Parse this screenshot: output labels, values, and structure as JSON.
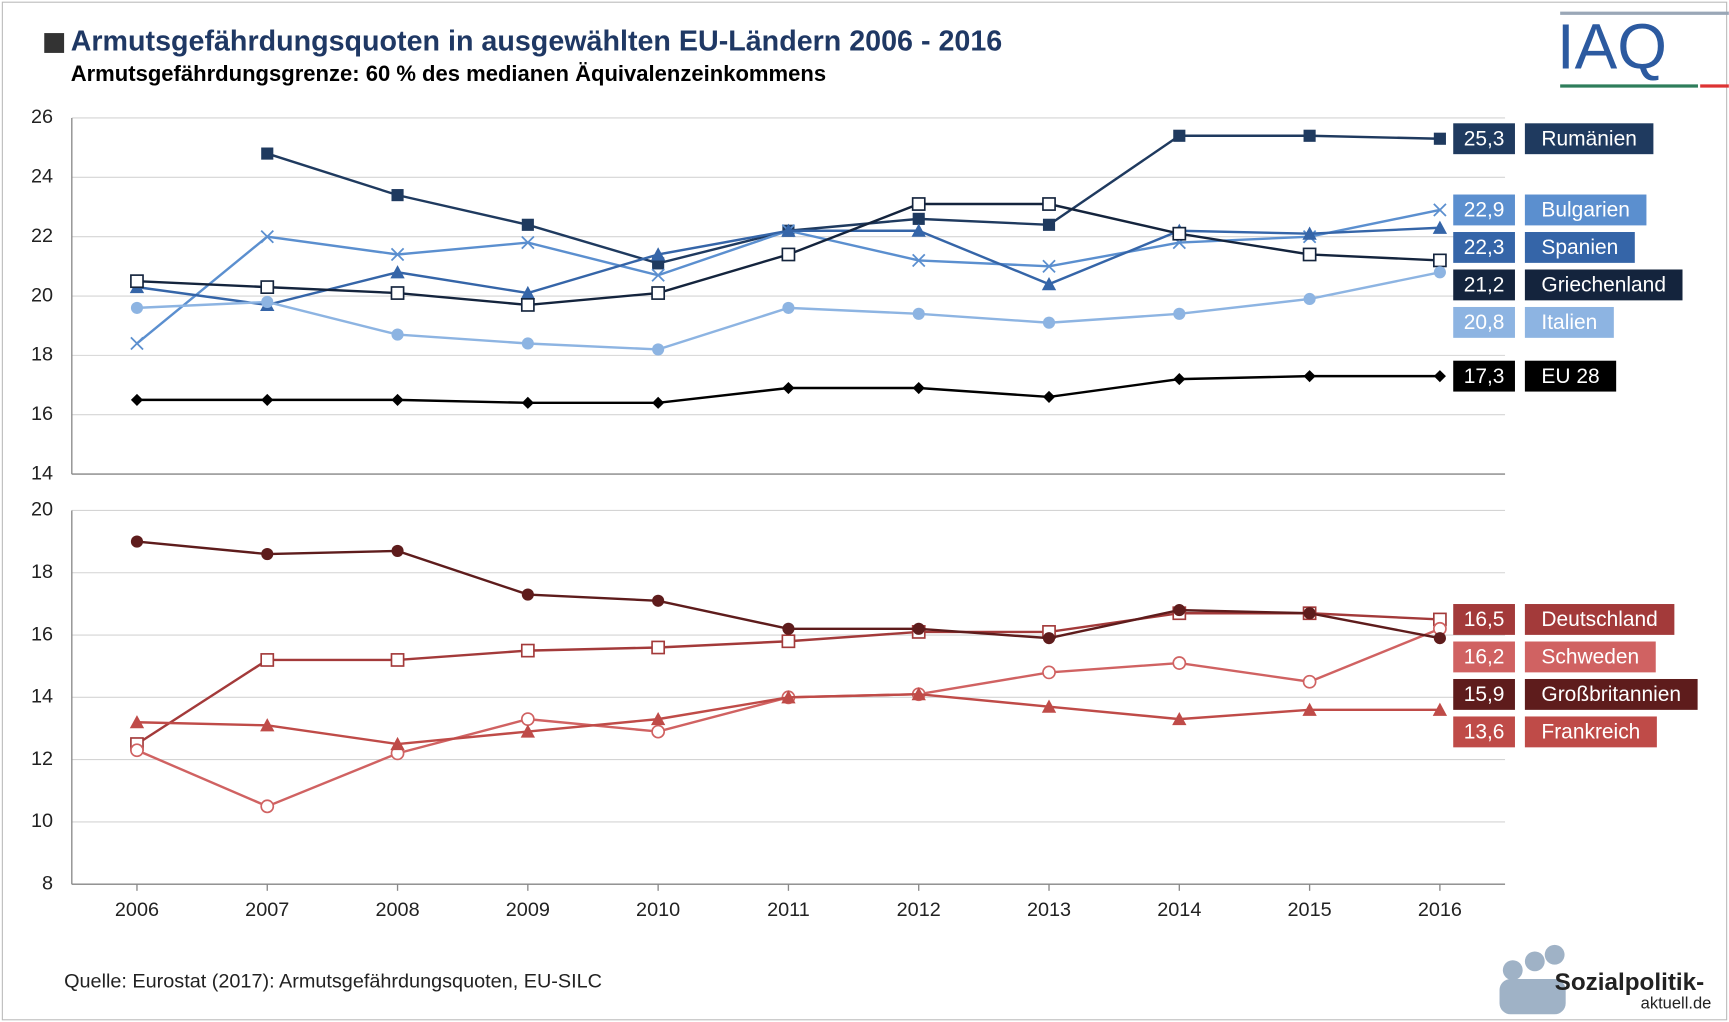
{
  "title": "Armutsgefährdungsquoten in ausgewählten EU-Ländern 2006 - 2016",
  "subtitle": "Armutsgefährdungsgrenze: 60 % des medianen Äquivalenzeinkommens",
  "source": "Quelle: Eurostat (2017): Armutsgefährdungsquoten, EU-SILC",
  "logo": "IAQ",
  "logo2": [
    "Sozialpolitik-",
    "aktuell.de"
  ],
  "chart_data": [
    {
      "type": "line",
      "ylim": [
        14,
        26
      ],
      "yticks": [
        14,
        16,
        18,
        20,
        22,
        24,
        26
      ],
      "grid": true,
      "series": [
        {
          "name": "Rumänien",
          "color": "#1f3a5f",
          "marker": "square",
          "values": [
            null,
            24.8,
            23.4,
            22.4,
            21.1,
            22.2,
            22.6,
            22.4,
            25.4,
            25.4,
            25.3
          ],
          "value_labels": [
            null,
            null,
            null,
            null,
            null,
            null,
            null,
            null,
            null,
            null,
            "25,3"
          ]
        },
        {
          "name": "Bulgarien",
          "color": "#5b8fcf",
          "marker": "x",
          "values": [
            18.4,
            22.0,
            21.4,
            21.8,
            20.7,
            22.2,
            21.2,
            21.0,
            21.8,
            22.0,
            22.9
          ],
          "value_labels": [
            null,
            null,
            null,
            null,
            null,
            null,
            null,
            null,
            null,
            null,
            "22,9"
          ]
        },
        {
          "name": "Spanien",
          "color": "#3565a8",
          "marker": "triangle",
          "values": [
            20.3,
            19.7,
            20.8,
            20.1,
            21.4,
            22.2,
            22.2,
            20.4,
            22.2,
            22.1,
            22.3
          ],
          "value_labels": [
            null,
            null,
            null,
            null,
            null,
            null,
            null,
            null,
            null,
            null,
            "22,3"
          ]
        },
        {
          "name": "Griechenland",
          "color": "#14243d",
          "marker": "square-open",
          "values": [
            20.5,
            20.3,
            20.1,
            19.7,
            20.1,
            21.4,
            23.1,
            23.1,
            22.1,
            21.4,
            21.2
          ],
          "value_labels": [
            null,
            null,
            null,
            null,
            null,
            null,
            null,
            null,
            null,
            null,
            "21,2"
          ]
        },
        {
          "name": "Italien",
          "color": "#8db4e2",
          "marker": "circle",
          "values": [
            19.6,
            19.8,
            18.7,
            18.4,
            18.2,
            19.6,
            19.4,
            19.1,
            19.4,
            19.9,
            20.8
          ],
          "value_labels": [
            null,
            null,
            null,
            null,
            null,
            null,
            null,
            null,
            null,
            null,
            "20,8"
          ]
        },
        {
          "name": "EU 28",
          "color": "#000000",
          "marker": "diamond",
          "values": [
            16.5,
            16.5,
            16.5,
            16.4,
            16.4,
            16.9,
            16.9,
            16.6,
            17.2,
            17.3,
            17.3
          ],
          "value_labels": [
            null,
            null,
            null,
            null,
            null,
            null,
            null,
            null,
            null,
            null,
            "17,3"
          ]
        }
      ]
    },
    {
      "type": "line",
      "categories": [
        "2006",
        "2007",
        "2008",
        "2009",
        "2010",
        "2011",
        "2012",
        "2013",
        "2014",
        "2015",
        "2016"
      ],
      "ylim": [
        8,
        20
      ],
      "yticks": [
        8,
        10,
        12,
        14,
        16,
        18,
        20
      ],
      "grid": true,
      "series": [
        {
          "name": "Deutschland",
          "color": "#a33a3a",
          "marker": "square-open",
          "values": [
            12.5,
            15.2,
            15.2,
            15.5,
            15.6,
            15.8,
            16.1,
            16.1,
            16.7,
            16.7,
            16.5
          ],
          "value_labels": [
            null,
            null,
            null,
            null,
            null,
            null,
            null,
            null,
            null,
            null,
            "16,5"
          ]
        },
        {
          "name": "Schweden",
          "color": "#d06262",
          "marker": "circle-open",
          "values": [
            12.3,
            10.5,
            12.2,
            13.3,
            12.9,
            14.0,
            14.1,
            14.8,
            15.1,
            14.5,
            16.2
          ],
          "value_labels": [
            null,
            null,
            null,
            null,
            null,
            null,
            null,
            null,
            null,
            null,
            "16,2"
          ]
        },
        {
          "name": "Großbritannien",
          "color": "#5e1c1c",
          "marker": "circle",
          "values": [
            19.0,
            18.6,
            18.7,
            17.3,
            17.1,
            16.2,
            16.2,
            15.9,
            16.8,
            16.7,
            15.9
          ],
          "value_labels": [
            null,
            null,
            null,
            null,
            null,
            null,
            null,
            null,
            null,
            null,
            "15,9"
          ]
        },
        {
          "name": "Frankreich",
          "color": "#bf4b48",
          "marker": "triangle",
          "values": [
            13.2,
            13.1,
            12.5,
            12.9,
            13.3,
            14.0,
            14.1,
            13.7,
            13.3,
            13.6,
            13.6
          ],
          "value_labels": [
            null,
            null,
            null,
            null,
            null,
            null,
            null,
            null,
            null,
            null,
            "13,6"
          ]
        }
      ]
    }
  ]
}
